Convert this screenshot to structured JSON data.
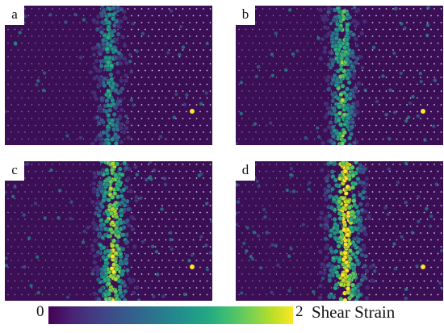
{
  "panels": [
    {
      "label": "a",
      "band_strength": 0.55,
      "spread": 0.35
    },
    {
      "label": "b",
      "band_strength": 0.75,
      "spread": 0.55
    },
    {
      "label": "c",
      "band_strength": 0.9,
      "spread": 0.75
    },
    {
      "label": "d",
      "band_strength": 1.0,
      "spread": 1.0
    }
  ],
  "colorbar": {
    "min_label": "0",
    "max_label": "2",
    "title": "Shear Strain",
    "colormap": "viridis"
  },
  "colors": {
    "background_atom": "#3b0f55",
    "low": "#440154",
    "mid": "#21918c",
    "high": "#fde725"
  }
}
